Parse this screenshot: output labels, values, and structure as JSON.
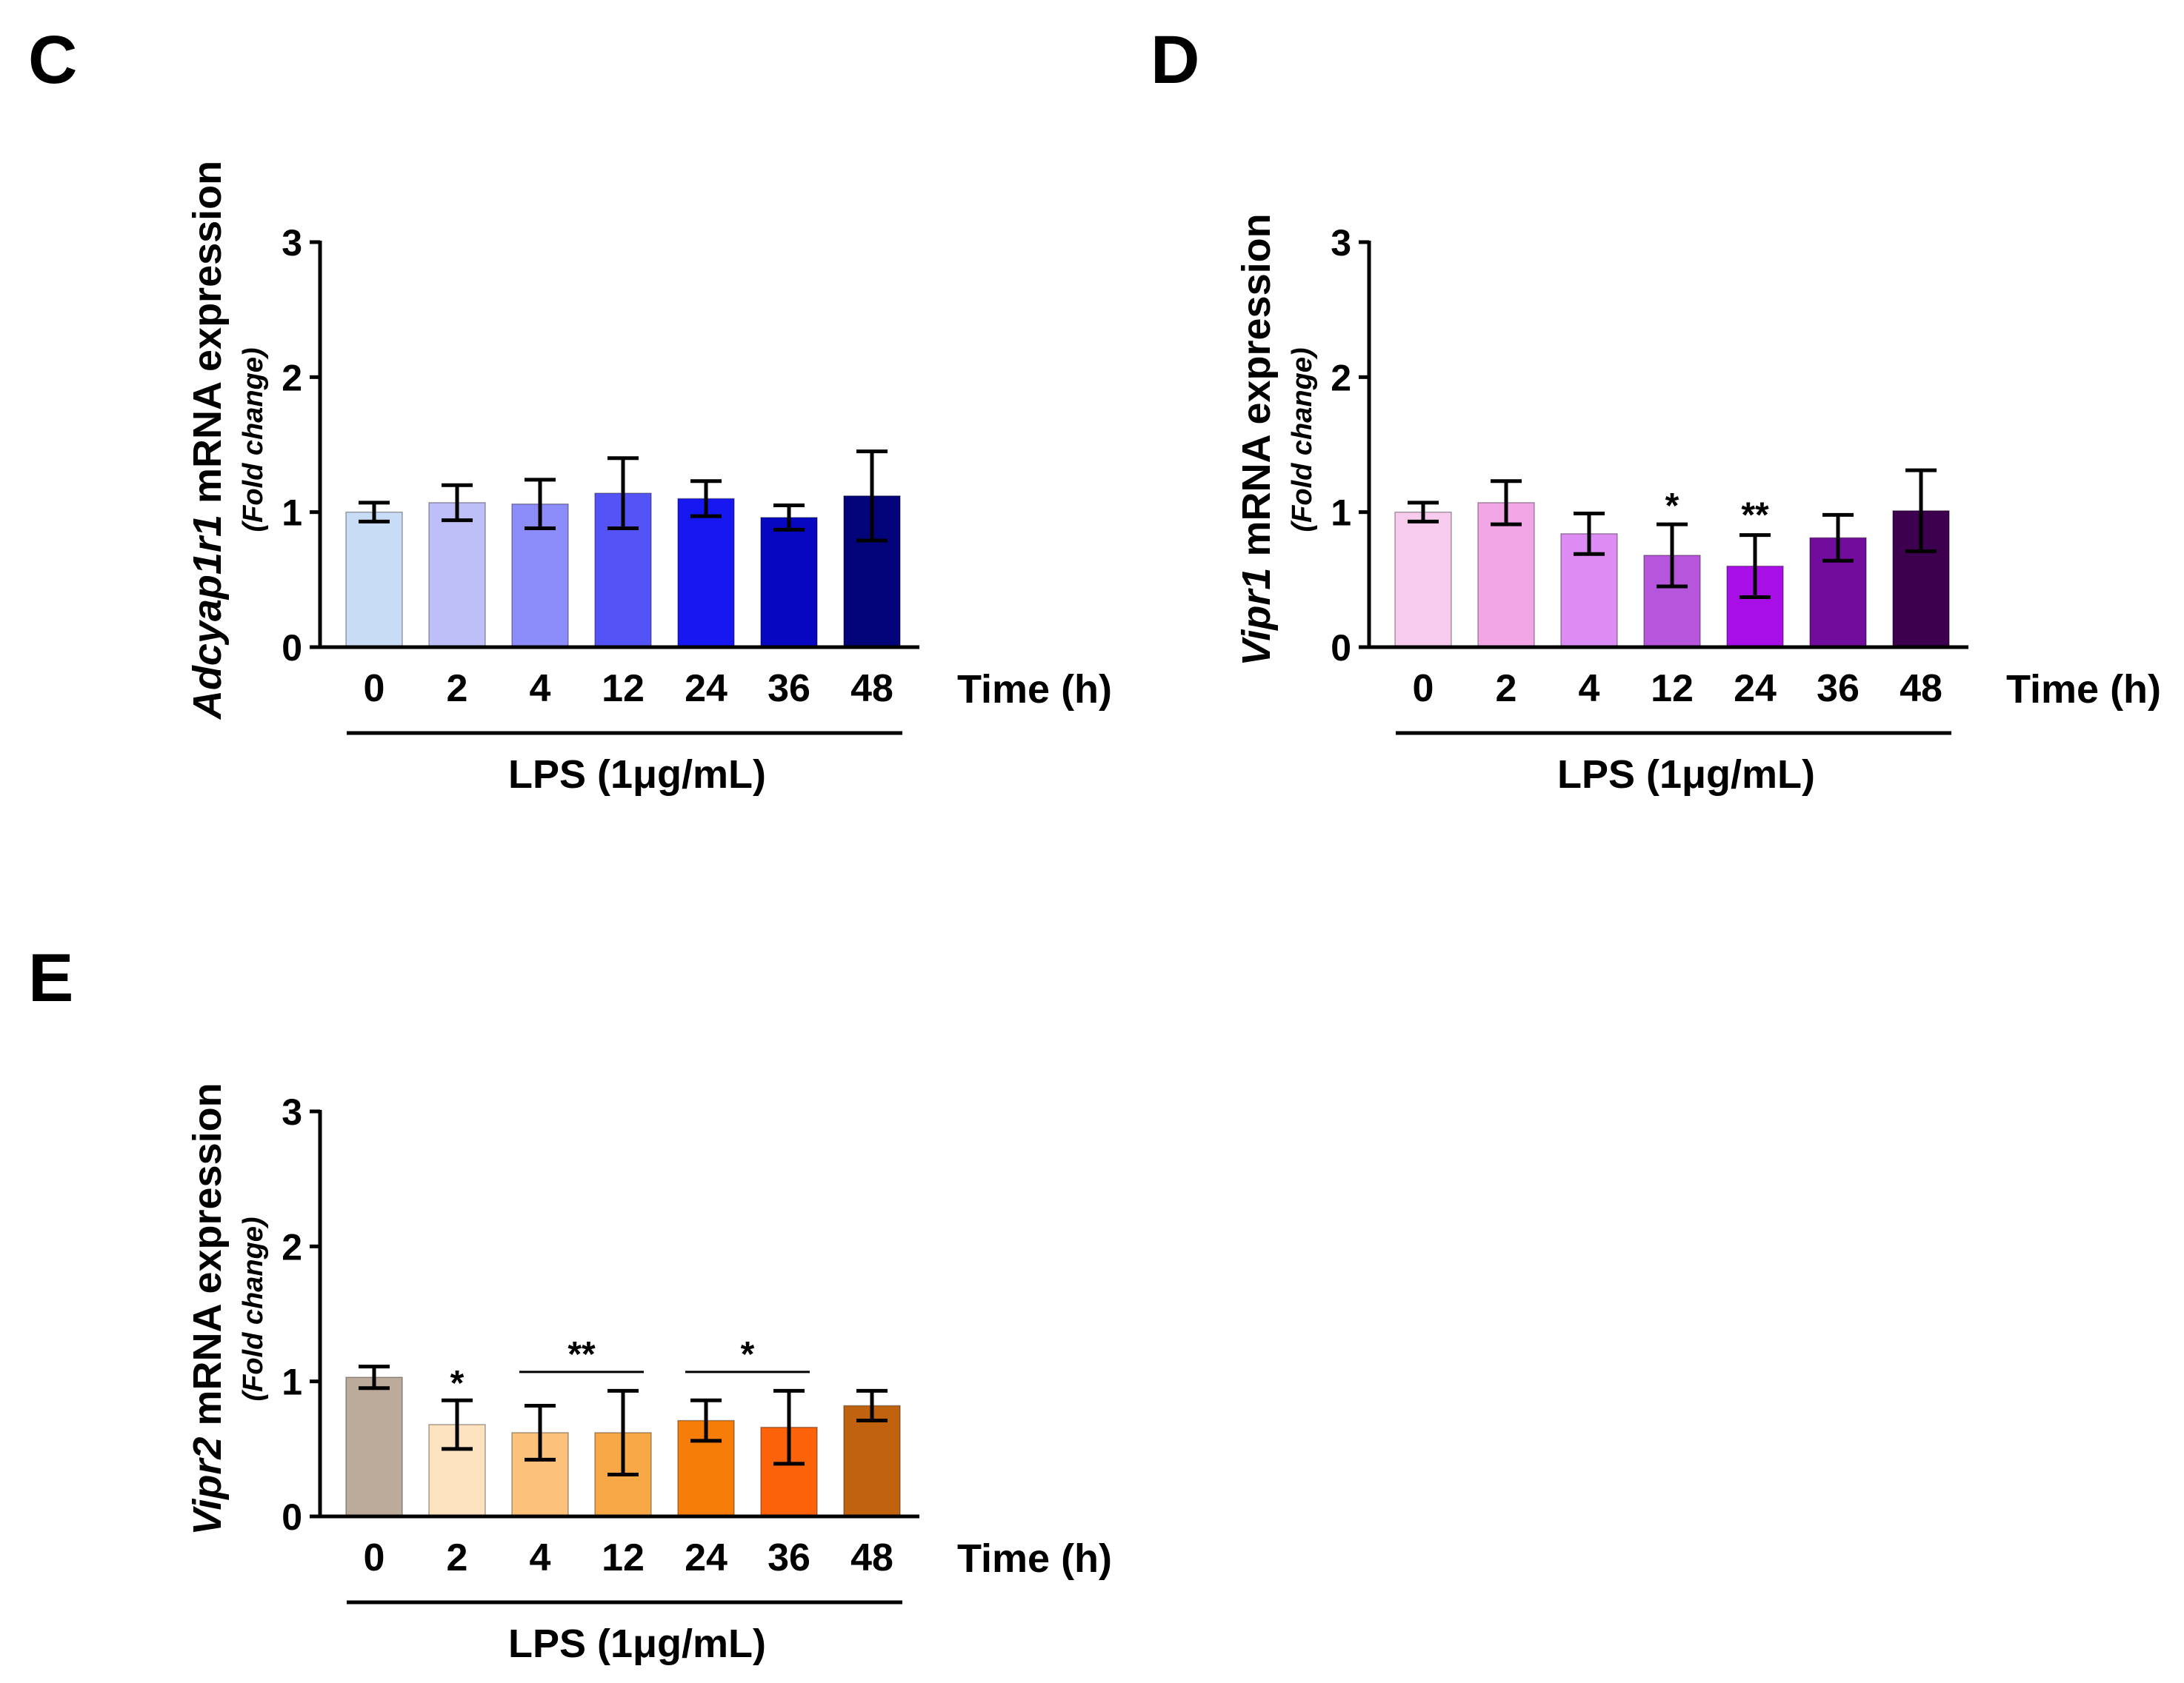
{
  "chart_data": [
    {
      "type": "bar",
      "panel_label": "C",
      "gene": "Adcyap1r1",
      "ylabel_suffix": " mRNA expression",
      "ylabel_sub": "(Fold change)",
      "xlabel": "Time (h)",
      "treatment_label": "LPS (1μg/mL)",
      "categories": [
        "0",
        "2",
        "4",
        "12",
        "24",
        "36",
        "48"
      ],
      "values": [
        1.0,
        1.07,
        1.06,
        1.14,
        1.1,
        0.96,
        1.12
      ],
      "errors": [
        0.07,
        0.13,
        0.18,
        0.26,
        0.13,
        0.09,
        0.33
      ],
      "colors": [
        "#c8dcf6",
        "#bebef8",
        "#8c8cfa",
        "#5353f6",
        "#1717f2",
        "#0707c2",
        "#04047a"
      ],
      "yticks": [
        "0",
        "1",
        "2",
        "3"
      ],
      "ylim": [
        0,
        3
      ],
      "significance": []
    },
    {
      "type": "bar",
      "panel_label": "D",
      "gene": "Vipr1",
      "ylabel_suffix": " mRNA expression",
      "ylabel_sub": "(Fold change)",
      "xlabel": "Time (h)",
      "treatment_label": "LPS (1μg/mL)",
      "categories": [
        "0",
        "2",
        "4",
        "12",
        "24",
        "36",
        "48"
      ],
      "values": [
        1.0,
        1.07,
        0.84,
        0.68,
        0.6,
        0.81,
        1.01
      ],
      "errors": [
        0.07,
        0.16,
        0.15,
        0.23,
        0.23,
        0.17,
        0.3
      ],
      "colors": [
        "#f6cbee",
        "#f2a6e6",
        "#dc8cf2",
        "#b656dc",
        "#a80ee6",
        "#720c9c",
        "#3c004e"
      ],
      "yticks": [
        "0",
        "1",
        "2",
        "3"
      ],
      "ylim": [
        0,
        3
      ],
      "significance": [
        {
          "text": "*",
          "from": 3,
          "to": 3,
          "y": 0.96,
          "bracket": false
        },
        {
          "text": "**",
          "from": 4,
          "to": 4,
          "y": 0.89,
          "bracket": false
        }
      ]
    },
    {
      "type": "bar",
      "panel_label": "E",
      "gene": "Vipr2",
      "ylabel_suffix": " mRNA expression",
      "ylabel_sub": "(Fold change)",
      "xlabel": "Time (h)",
      "treatment_label": "LPS (1μg/mL)",
      "categories": [
        "0",
        "2",
        "4",
        "12",
        "24",
        "36",
        "48"
      ],
      "values": [
        1.03,
        0.68,
        0.62,
        0.62,
        0.71,
        0.66,
        0.82
      ],
      "errors": [
        0.08,
        0.18,
        0.2,
        0.31,
        0.15,
        0.27,
        0.11
      ],
      "colors": [
        "#bcaa9a",
        "#fde2c0",
        "#fcc27c",
        "#f8a746",
        "#f57d08",
        "#fb620a",
        "#c0620e"
      ],
      "yticks": [
        "0",
        "1",
        "2",
        "3"
      ],
      "ylim": [
        0,
        3
      ],
      "significance": [
        {
          "text": "*",
          "from": 1,
          "to": 1,
          "y": 0.9,
          "bracket": false
        },
        {
          "text": "**",
          "from": 2,
          "to": 3,
          "y": 1.07,
          "bracket": true
        },
        {
          "text": "*",
          "from": 4,
          "to": 5,
          "y": 1.07,
          "bracket": true
        }
      ]
    }
  ]
}
